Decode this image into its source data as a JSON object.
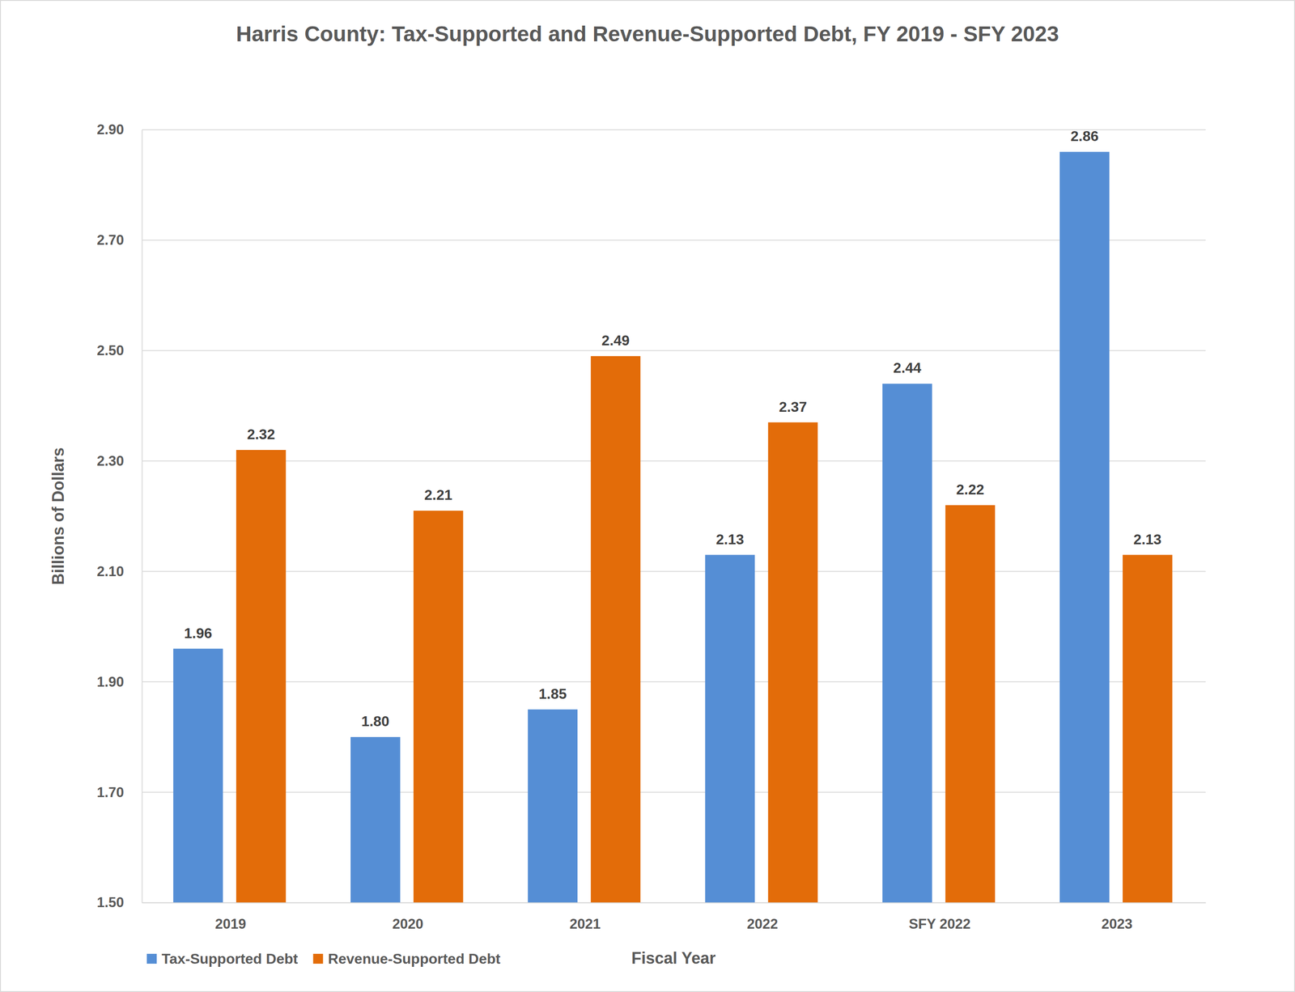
{
  "chart_data": {
    "type": "bar",
    "title": "Harris County: Tax-Supported and Revenue-Supported Debt, FY 2019 - SFY 2023",
    "x_label": "Fiscal Year",
    "y_label": "Billions of Dollars",
    "categories": [
      "2019",
      "2020",
      "2021",
      "2022",
      "SFY 2022",
      "2023"
    ],
    "series": [
      {
        "name": "Tax-Supported Debt",
        "color": "#558ED5",
        "values": [
          1.96,
          1.8,
          1.85,
          2.13,
          2.44,
          2.86
        ],
        "value_labels": [
          "1.96",
          "1.80",
          "1.85",
          "2.13",
          "2.44",
          "2.86"
        ]
      },
      {
        "name": "Revenue-Supported Debt",
        "color": "#E36C09",
        "values": [
          2.32,
          2.21,
          2.49,
          2.37,
          2.22,
          2.13
        ],
        "value_labels": [
          "2.32",
          "2.21",
          "2.49",
          "2.37",
          "2.22",
          "2.13"
        ]
      }
    ],
    "ylim": [
      1.5,
      2.9
    ],
    "yticks": [
      {
        "value": 1.5,
        "label": "1.50"
      },
      {
        "value": 1.7,
        "label": "1.70"
      },
      {
        "value": 1.9,
        "label": "1.90"
      },
      {
        "value": 2.1,
        "label": "2.10"
      },
      {
        "value": 2.3,
        "label": "2.30"
      },
      {
        "value": 2.5,
        "label": "2.50"
      },
      {
        "value": 2.7,
        "label": "2.70"
      },
      {
        "value": 2.9,
        "label": "2.90"
      }
    ],
    "grid": true,
    "data_labels": true,
    "legend": "bottom-left"
  }
}
